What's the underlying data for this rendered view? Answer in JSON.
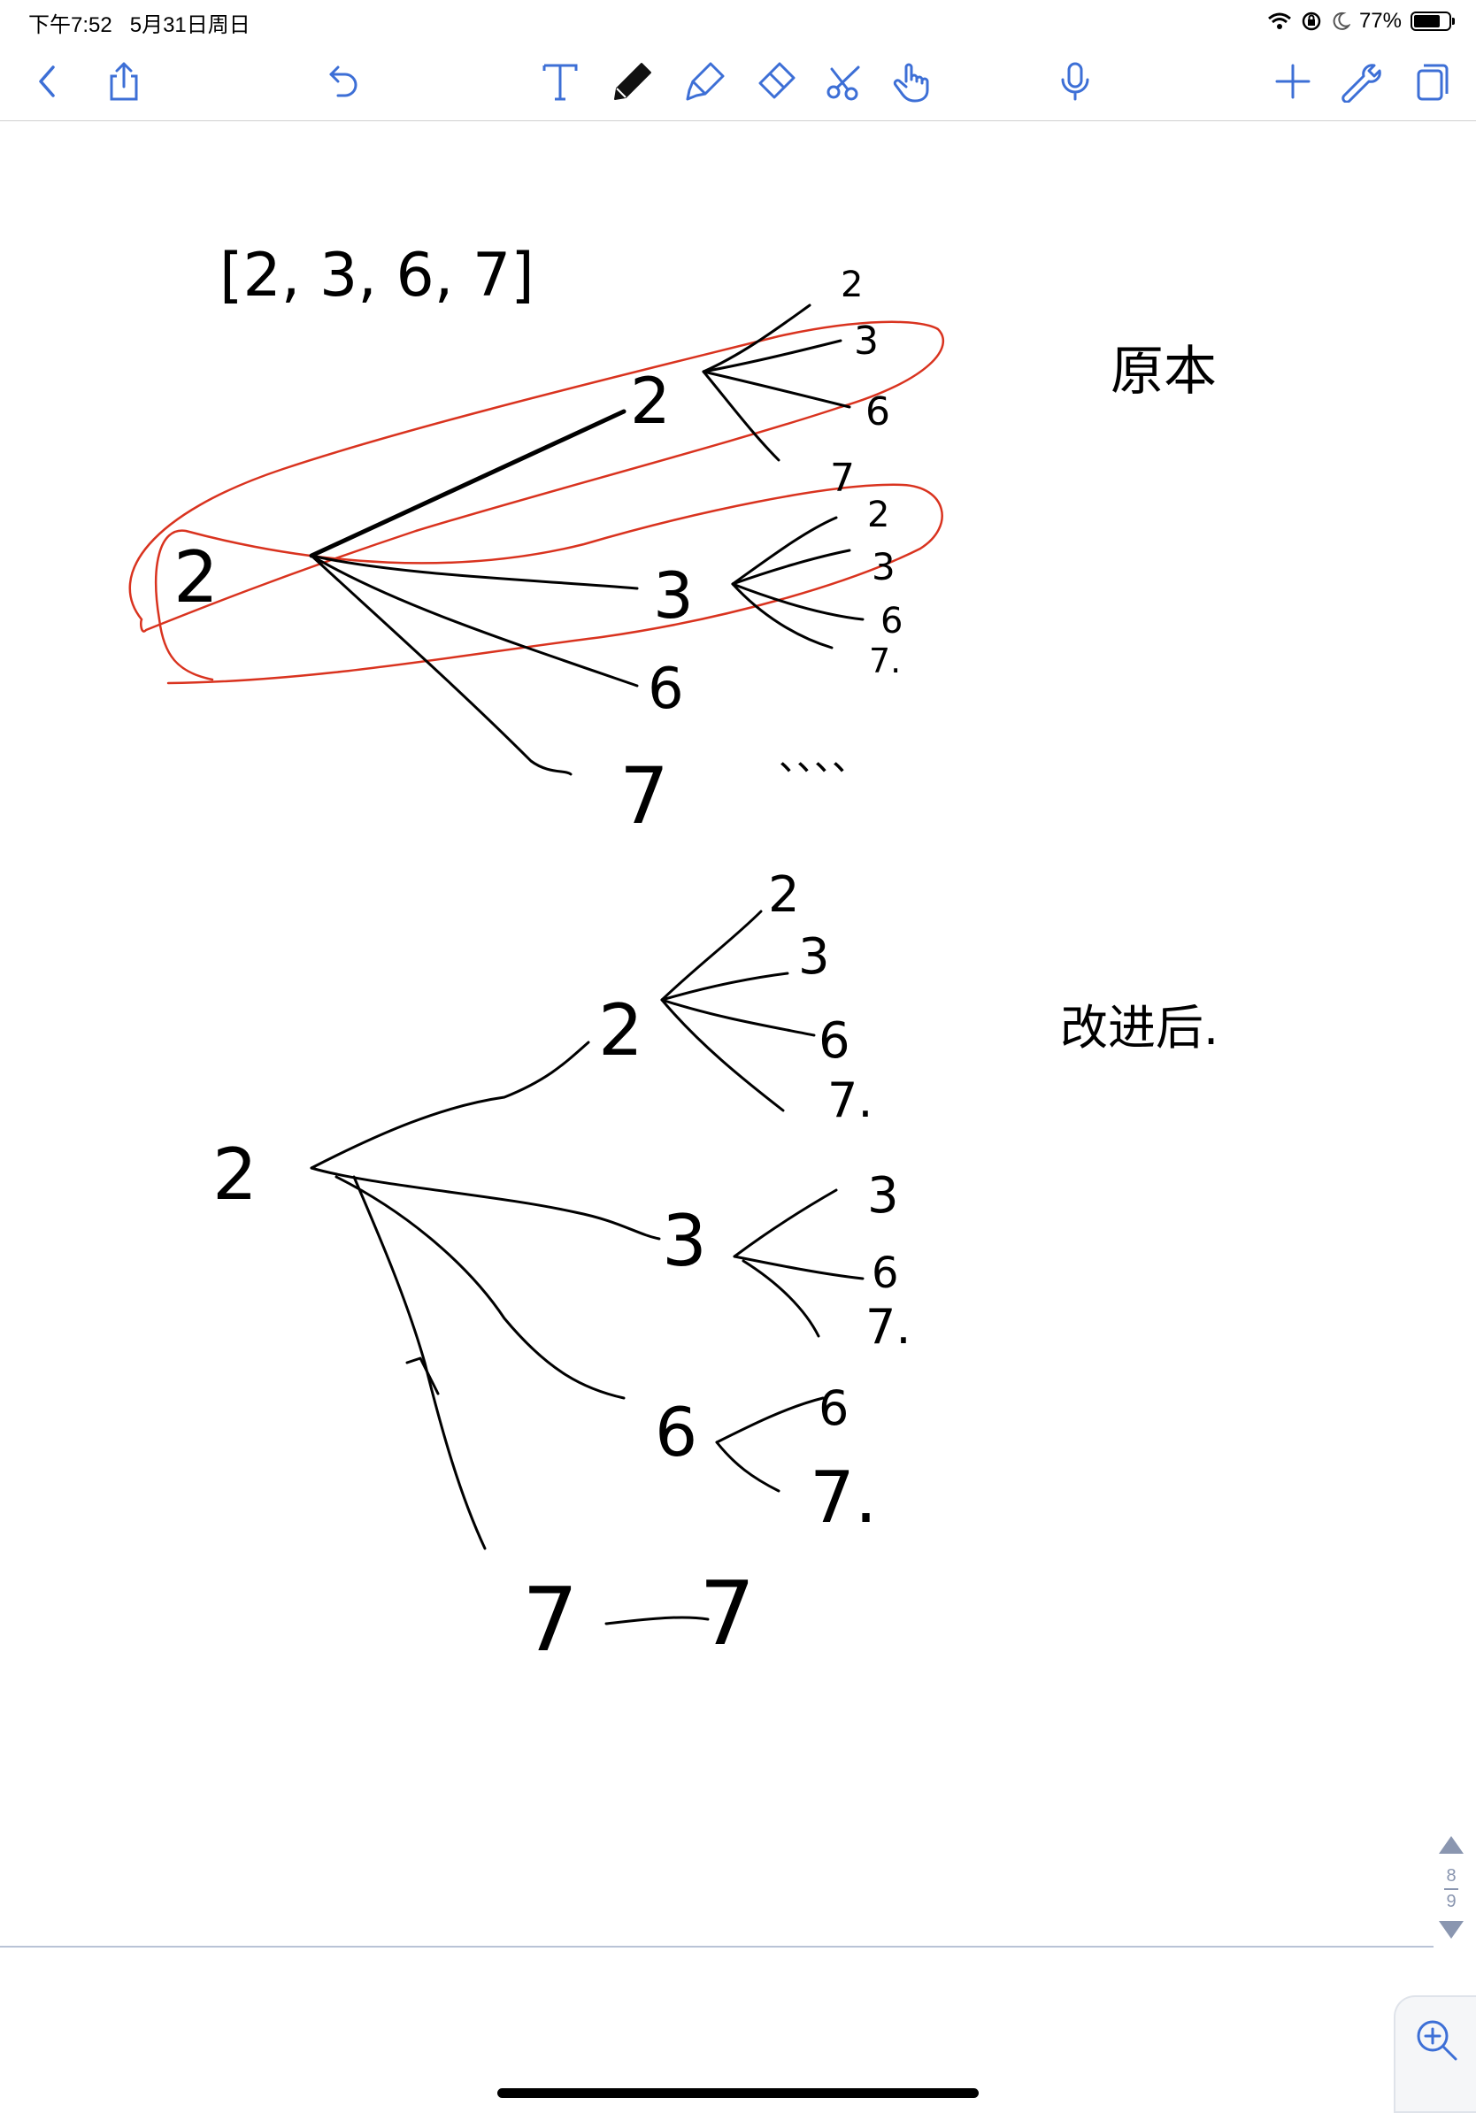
{
  "status_bar": {
    "time": "下午7:52",
    "date": "5月31日周日",
    "battery_percent": "77%",
    "battery_level": 0.77
  },
  "toolbar": {
    "left": [
      {
        "icon": "back-chevron-icon",
        "label": "Back"
      },
      {
        "icon": "share-icon",
        "label": "Share"
      },
      {
        "icon": "undo-icon",
        "label": "Undo"
      }
    ],
    "tools": [
      {
        "icon": "text-tool-icon"
      },
      {
        "icon": "pen-tool-icon",
        "selected": true
      },
      {
        "icon": "highlighter-tool-icon"
      },
      {
        "icon": "eraser-tool-icon"
      },
      {
        "icon": "lasso-scissors-icon"
      },
      {
        "icon": "hand-pointer-icon"
      }
    ],
    "right": [
      {
        "icon": "microphone-icon"
      },
      {
        "icon": "add-icon"
      },
      {
        "icon": "wrench-icon"
      },
      {
        "icon": "pages-icon"
      }
    ],
    "accent_color": "#3d6fd6"
  },
  "note": {
    "list_text": "[2, 3, 6, 7]",
    "label_original": "原本",
    "label_improved": "改进后.",
    "ink_color": "#000000",
    "highlight_color": "#d9331f",
    "tree_original": {
      "root": "2",
      "children": [
        {
          "label": "2",
          "children": [
            "2",
            "3",
            "6",
            "7"
          ]
        },
        {
          "label": "3",
          "children": [
            "2",
            "3",
            "6",
            "7."
          ]
        },
        {
          "label": "6"
        },
        {
          "label": "7"
        }
      ],
      "ellipsis": "、、、、"
    },
    "tree_improved": {
      "root": "2",
      "children": [
        {
          "label": "2",
          "children": [
            "2",
            "3",
            "6",
            "7."
          ]
        },
        {
          "label": "3",
          "children": [
            "3",
            "6",
            "7."
          ]
        },
        {
          "label": "6",
          "children": [
            "6",
            "7."
          ]
        },
        {
          "label": "7",
          "children": [
            "7"
          ]
        }
      ]
    }
  },
  "pager": {
    "current": "8",
    "total": "9"
  }
}
